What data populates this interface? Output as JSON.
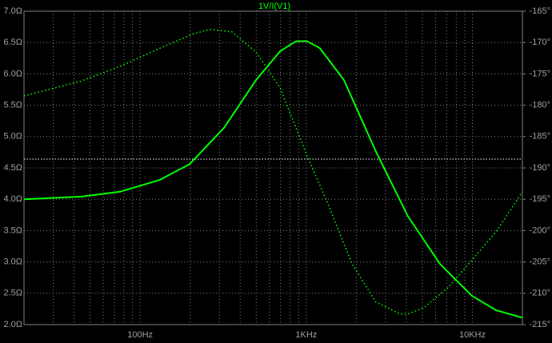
{
  "chart_data": {
    "type": "line",
    "title": "1V/I(V1)",
    "title_color": "#00ff00",
    "xscale": "log",
    "xlim": [
      20,
      20000
    ],
    "xticks": [
      {
        "value": 100,
        "label": "100Hz"
      },
      {
        "value": 1000,
        "label": "1KHz"
      },
      {
        "value": 10000,
        "label": "10KHz"
      }
    ],
    "xminorticks": [
      30,
      40,
      50,
      60,
      70,
      80,
      90,
      200,
      300,
      400,
      500,
      600,
      700,
      800,
      900,
      2000,
      3000,
      4000,
      5000,
      6000,
      7000,
      8000,
      9000
    ],
    "ylim": [
      2,
      7
    ],
    "yticks": [
      {
        "value": 2,
        "label": "2.0Ω"
      },
      {
        "value": 2.5,
        "label": "2.5Ω"
      },
      {
        "value": 3,
        "label": "3.0Ω"
      },
      {
        "value": 3.5,
        "label": "3.5Ω"
      },
      {
        "value": 4,
        "label": "4.0Ω"
      },
      {
        "value": 4.5,
        "label": "4.5Ω"
      },
      {
        "value": 5,
        "label": "5.0Ω"
      },
      {
        "value": 5.5,
        "label": "5.5Ω"
      },
      {
        "value": 6,
        "label": "6.0Ω"
      },
      {
        "value": 6.5,
        "label": "6.5Ω"
      },
      {
        "value": 7,
        "label": "7.0Ω"
      }
    ],
    "y2lim": [
      -215,
      -165
    ],
    "y2ticks": [
      {
        "value": -215,
        "label": "-215°"
      },
      {
        "value": -210,
        "label": "-210°"
      },
      {
        "value": -205,
        "label": "-205°"
      },
      {
        "value": -200,
        "label": "-200°"
      },
      {
        "value": -195,
        "label": "-195°"
      },
      {
        "value": -190,
        "label": "-190°"
      },
      {
        "value": -185,
        "label": "-185°"
      },
      {
        "value": -180,
        "label": "-180°"
      },
      {
        "value": -175,
        "label": "-175°"
      },
      {
        "value": -170,
        "label": "-170°"
      },
      {
        "value": -165,
        "label": "-165°"
      }
    ],
    "grid": true,
    "series": [
      {
        "color": "#00ff00",
        "style": "solid",
        "x": [
          20,
          43.5,
          75.7,
          131.6,
          198.6,
          320,
          498,
          695,
          867,
          1012,
          1208,
          1687,
          2627,
          4090,
          6370,
          9930,
          13870,
          20000
        ],
        "values": [
          4.0,
          4.04,
          4.12,
          4.31,
          4.56,
          5.14,
          5.9,
          6.36,
          6.52,
          6.52,
          6.41,
          5.9,
          4.76,
          3.73,
          2.97,
          2.46,
          2.23,
          2.11
        ]
      },
      {
        "color": "#00ff00",
        "style": "dotted",
        "axis": "y2",
        "x": [
          20,
          43.5,
          75.7,
          131.6,
          205,
          262,
          357,
          498,
          695,
          1012,
          1349,
          1884,
          2627,
          3664,
          4090,
          5105,
          7130,
          9930,
          13870,
          20000
        ],
        "values": [
          -178.5,
          -176.2,
          -173.8,
          -170.9,
          -168.7,
          -167.9,
          -168.3,
          -171.5,
          -177.2,
          -188.1,
          -195.7,
          -205.3,
          -211.4,
          -213.3,
          -213.3,
          -212.3,
          -209.1,
          -204.7,
          -200.2,
          -193.8
        ]
      }
    ]
  }
}
